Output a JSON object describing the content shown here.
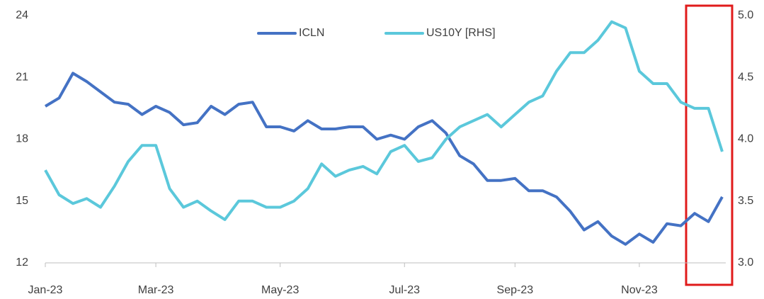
{
  "chart_data": {
    "type": "line",
    "categories": [
      "Jan-23",
      null,
      null,
      null,
      null,
      null,
      null,
      null,
      "Mar-23",
      null,
      null,
      null,
      null,
      null,
      null,
      null,
      null,
      "May-23",
      null,
      null,
      null,
      null,
      null,
      null,
      null,
      null,
      "Jul-23",
      null,
      null,
      null,
      null,
      null,
      null,
      null,
      "Sep-23",
      null,
      null,
      null,
      null,
      null,
      null,
      null,
      null,
      "Nov-23",
      null,
      null,
      null,
      null,
      null,
      null
    ],
    "series": [
      {
        "name": "ICLN",
        "color": "#4472c4",
        "axis": "y",
        "values": [
          19.6,
          20.0,
          21.2,
          20.8,
          20.3,
          19.8,
          19.7,
          19.2,
          19.6,
          19.3,
          18.7,
          18.8,
          19.6,
          19.2,
          19.7,
          19.8,
          18.6,
          18.6,
          18.4,
          18.9,
          18.5,
          18.5,
          18.6,
          18.6,
          18.0,
          18.2,
          18.0,
          18.6,
          18.9,
          18.3,
          17.2,
          16.8,
          16.0,
          16.0,
          16.1,
          15.5,
          15.5,
          15.2,
          14.5,
          13.6,
          14.0,
          13.3,
          12.9,
          13.4,
          13.0,
          13.9,
          13.8,
          14.4,
          14.0,
          15.2
        ]
      },
      {
        "name": "US10Y [RHS]",
        "color": "#5bc8db",
        "axis": "y2",
        "values": [
          3.75,
          3.55,
          3.48,
          3.52,
          3.45,
          3.62,
          3.82,
          3.95,
          3.95,
          3.6,
          3.45,
          3.5,
          3.42,
          3.35,
          3.5,
          3.5,
          3.45,
          3.45,
          3.5,
          3.6,
          3.8,
          3.7,
          3.75,
          3.78,
          3.72,
          3.9,
          3.95,
          3.82,
          3.85,
          4.0,
          4.1,
          4.15,
          4.2,
          4.1,
          4.2,
          4.3,
          4.35,
          4.55,
          4.7,
          4.7,
          4.8,
          4.95,
          4.9,
          4.55,
          4.45,
          4.45,
          4.3,
          4.25,
          4.25,
          3.9
        ]
      }
    ],
    "ylim": [
      12,
      24
    ],
    "yticks": [
      12,
      15,
      18,
      21,
      24
    ],
    "y2lim": [
      3,
      5
    ],
    "y2ticks": [
      {
        "value": 3,
        "label": "3.0"
      },
      3.5,
      {
        "value": 4,
        "label": "4.0"
      },
      4.5,
      {
        "value": 5,
        "label": "5.0"
      }
    ],
    "legend": "top"
  }
}
